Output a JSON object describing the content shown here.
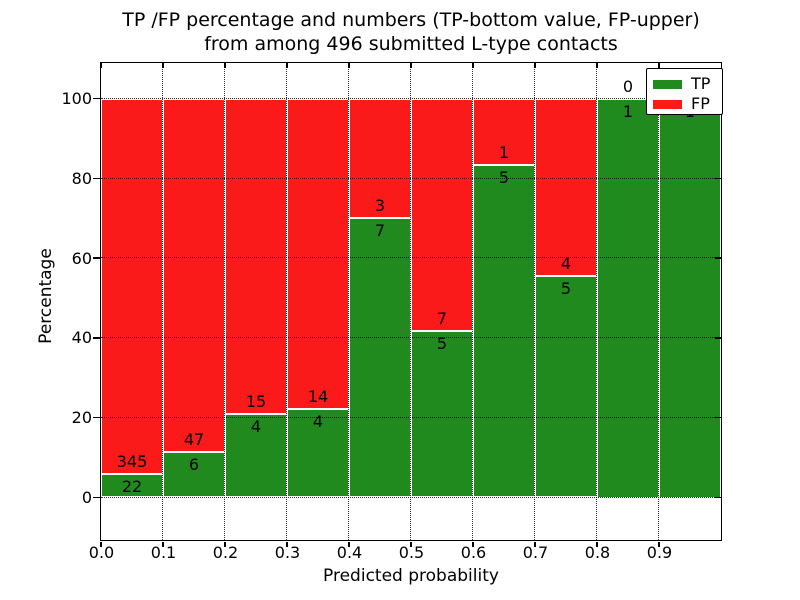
{
  "title": {
    "line1": "TP /FP percentage and numbers (TP-bottom value, FP-upper)",
    "line2": "from among 496 submitted L-type contacts"
  },
  "axes": {
    "xlabel": "Predicted probability",
    "ylabel": "Percentage",
    "x_ticks": [
      {
        "label": "0.0",
        "value": 0.0
      },
      {
        "label": "0.1",
        "value": 0.1
      },
      {
        "label": "0.2",
        "value": 0.2
      },
      {
        "label": "0.3",
        "value": 0.3
      },
      {
        "label": "0.4",
        "value": 0.4
      },
      {
        "label": "0.5",
        "value": 0.5
      },
      {
        "label": "0.6",
        "value": 0.6
      },
      {
        "label": "0.7",
        "value": 0.7
      },
      {
        "label": "0.8",
        "value": 0.8
      },
      {
        "label": "0.9",
        "value": 0.9
      }
    ],
    "y_ticks": [
      {
        "label": "0",
        "value": 0
      },
      {
        "label": "20",
        "value": 20
      },
      {
        "label": "40",
        "value": 40
      },
      {
        "label": "60",
        "value": 60
      },
      {
        "label": "80",
        "value": 80
      },
      {
        "label": "100",
        "value": 100
      }
    ]
  },
  "legend": {
    "items": [
      {
        "label": "TP",
        "color": "#218a1e"
      },
      {
        "label": "FP",
        "color": "#fb1a1a"
      }
    ]
  },
  "chart_data": {
    "type": "bar",
    "stacked": true,
    "units": "percent of contacts in each probability bin",
    "title": "TP /FP percentage and numbers (TP-bottom value, FP-upper) from among 496 submitted L-type contacts",
    "xlabel": "Predicted probability",
    "ylabel": "Percentage",
    "xlim": [
      0.0,
      1.0
    ],
    "ylim": [
      -10.5,
      109.5
    ],
    "grid": true,
    "grid_style": "dotted",
    "legend_position": "upper right",
    "bin_edges": [
      0.0,
      0.1,
      0.2,
      0.3,
      0.4,
      0.5,
      0.6,
      0.7,
      0.8,
      0.9,
      1.0
    ],
    "categories": [
      "0.0-0.1",
      "0.1-0.2",
      "0.2-0.3",
      "0.3-0.4",
      "0.4-0.5",
      "0.5-0.6",
      "0.6-0.7",
      "0.7-0.8",
      "0.8-0.9",
      "0.9-1.0"
    ],
    "series": [
      {
        "name": "TP",
        "color": "#218a1e",
        "counts": [
          22,
          6,
          4,
          4,
          7,
          5,
          5,
          5,
          1,
          1
        ],
        "percent": [
          5.99,
          11.32,
          21.05,
          22.22,
          70.0,
          41.67,
          83.33,
          55.56,
          100.0,
          100.0
        ]
      },
      {
        "name": "FP",
        "color": "#fb1a1a",
        "counts": [
          345,
          47,
          15,
          14,
          3,
          7,
          1,
          4,
          0,
          0
        ],
        "percent": [
          94.01,
          88.68,
          78.95,
          77.78,
          30.0,
          58.33,
          16.67,
          44.44,
          0.0,
          0.0
        ]
      }
    ],
    "total_contacts": 496
  }
}
